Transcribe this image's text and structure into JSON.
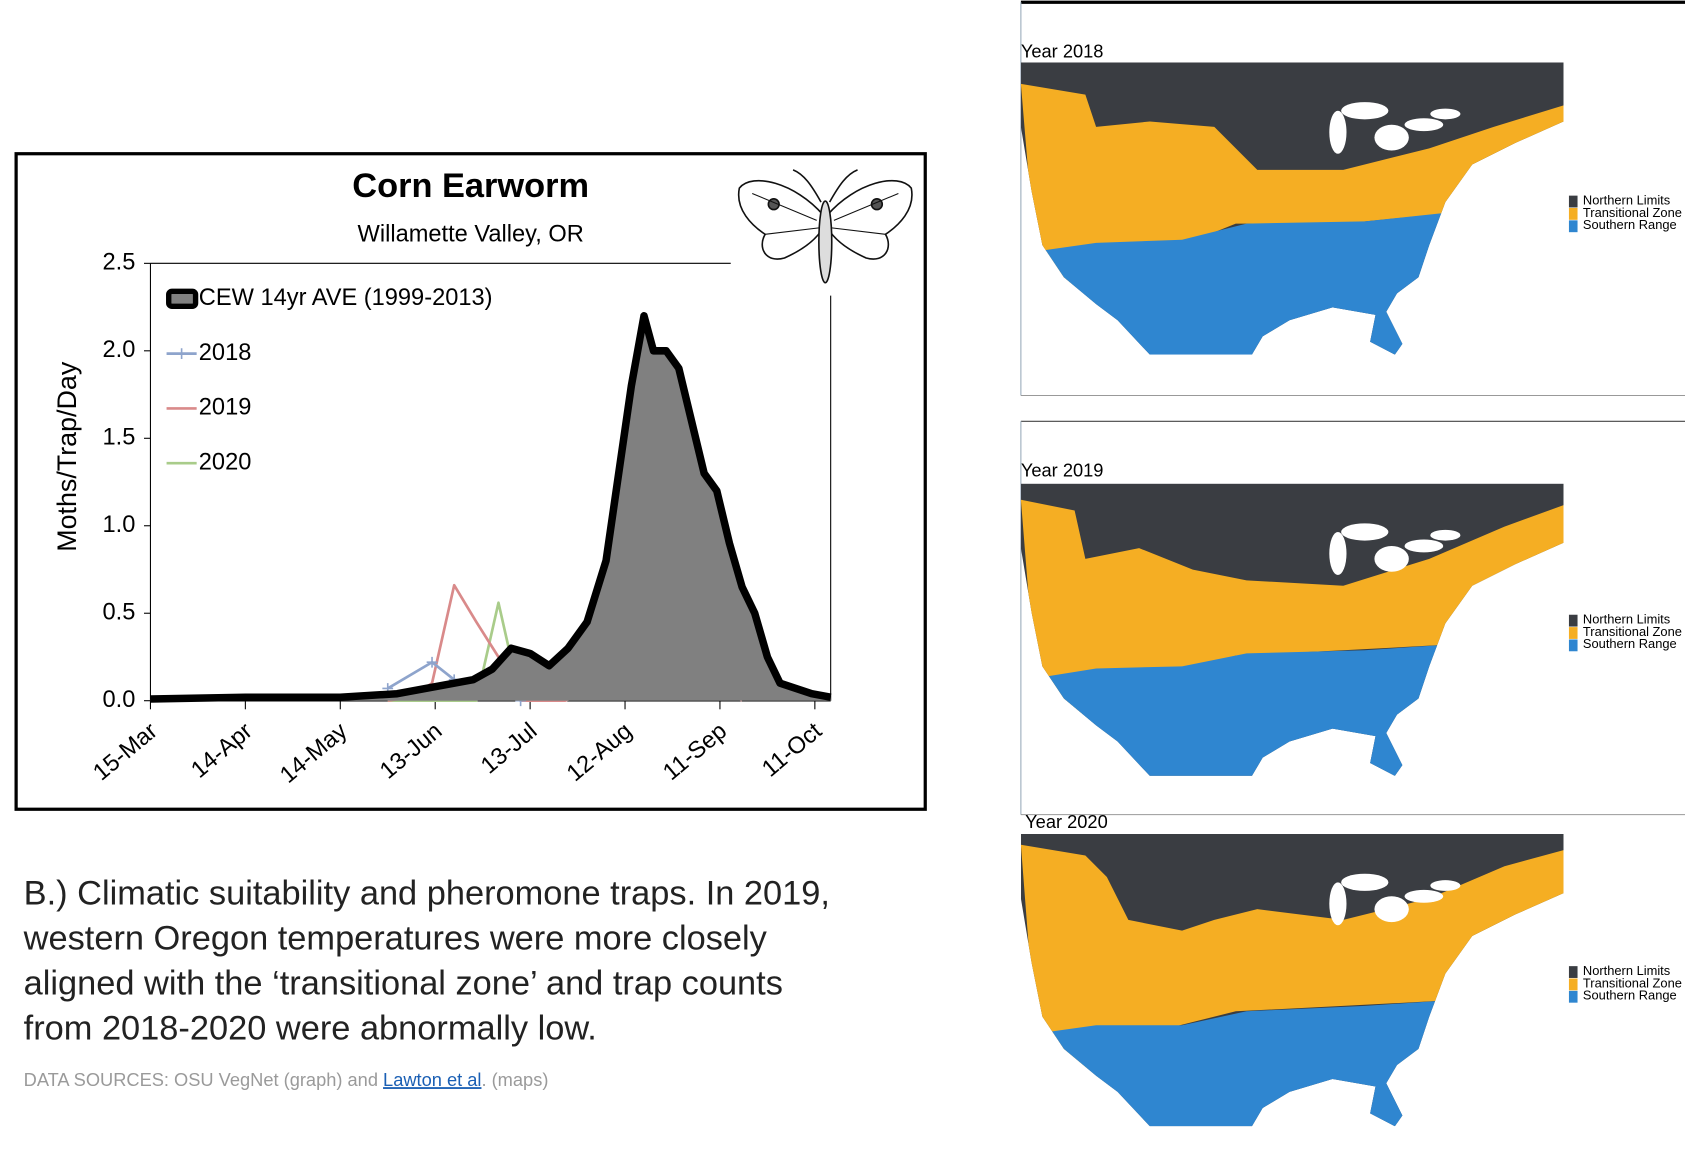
{
  "chart_data": {
    "type": "line",
    "title": "Corn Earworm",
    "subtitle": "Willamette Valley, OR",
    "y_label": "Moths/Trap/Day",
    "xlim": [
      "15-Mar",
      "16-Oct"
    ],
    "xticks": [
      "15-Mar",
      "14-Apr",
      "14-May",
      "13-Jun",
      "13-Jul",
      "12-Aug",
      "11-Sep",
      "11-Oct"
    ],
    "ylim": [
      0,
      2.5
    ],
    "yticks": [
      {
        "value": 0,
        "label": "0.0"
      },
      0.5,
      {
        "value": 1,
        "label": "1.0"
      },
      1.5,
      {
        "value": 2,
        "label": "2.0"
      },
      2.5
    ],
    "legend": "upper left",
    "series": [
      {
        "name": "CEW 14yr AVE (1999-2013)",
        "color": "#000000",
        "fill": "#808080",
        "area": true,
        "x": [
          "15-Mar",
          "14-Apr",
          "14-May",
          "1-Jun",
          "13-Jun",
          "25-Jun",
          "1-Jul",
          "7-Jul",
          "13-Jul",
          "19-Jul",
          "25-Jul",
          "31-Jul",
          "6-Aug",
          "10-Aug",
          "14-Aug",
          "18-Aug",
          "21-Aug",
          "25-Aug",
          "29-Aug",
          "2-Sep",
          "6-Sep",
          "10-Sep",
          "14-Sep",
          "18-Sep",
          "22-Sep",
          "26-Sep",
          "30-Sep",
          "5-Oct",
          "10-Oct",
          "16-Oct"
        ],
        "values": [
          0.01,
          0.02,
          0.02,
          0.04,
          0.08,
          0.12,
          0.18,
          0.3,
          0.27,
          0.2,
          0.3,
          0.45,
          0.8,
          1.3,
          1.8,
          2.2,
          2.0,
          2.0,
          1.9,
          1.6,
          1.3,
          1.2,
          0.9,
          0.65,
          0.5,
          0.25,
          0.1,
          0.07,
          0.04,
          0.02
        ]
      },
      {
        "name": "2018",
        "color": "#8ea4cc",
        "markers": true,
        "x": [
          "29-May",
          "12-Jun",
          "19-Jun",
          "26-Jun",
          "3-Jul",
          "10-Jul",
          "17-Jul",
          "24-Jul",
          "31-Jul",
          "7-Aug",
          "14-Aug",
          "21-Aug",
          "28-Aug",
          "4-Sep",
          "11-Sep",
          "18-Sep"
        ],
        "values": [
          0.07,
          0.22,
          0.12,
          0.1,
          0.08,
          0.0,
          0.07,
          0.06,
          0.07,
          0.25,
          0.28,
          0.6,
          0.35,
          0.12,
          0.42,
          0.42
        ]
      },
      {
        "name": "2019",
        "color": "#d98a8a",
        "x": [
          "29-May",
          "5-Jun",
          "12-Jun",
          "19-Jun",
          "26-Jun",
          "3-Jul",
          "10-Jul",
          "17-Jul",
          "24-Jul",
          "31-Jul",
          "7-Aug",
          "14-Aug",
          "21-Aug",
          "28-Aug",
          "4-Sep",
          "11-Sep",
          "18-Sep"
        ],
        "values": [
          0.0,
          0.02,
          0.1,
          0.66,
          0.45,
          0.25,
          0.0,
          0.0,
          0.0,
          0.05,
          0.18,
          0.28,
          0.05,
          0.12,
          0.13,
          0.1,
          0.0
        ]
      },
      {
        "name": "2020",
        "color": "#a9cc8a",
        "x": [
          "29-May",
          "5-Jun",
          "12-Jun",
          "19-Jun",
          "26-Jun",
          "3-Jul",
          "10-Jul",
          "17-Jul",
          "24-Jul",
          "31-Jul",
          "7-Aug",
          "14-Aug",
          "21-Aug",
          "28-Aug",
          "4-Sep"
        ],
        "values": [
          0.0,
          0.0,
          0.0,
          0.0,
          0.0,
          0.56,
          0.0,
          0.08,
          0.15,
          0.3,
          0.05,
          0.15,
          0.6,
          0.1,
          0.15
        ]
      }
    ]
  },
  "caption": [
    "B.) Climatic suitability and pheromone traps. In 2019,",
    "western Oregon temperatures were more closely",
    "aligned with the ‘transitional zone’ and trap counts",
    "from 2018-2020 were abnormally low."
  ],
  "sources": {
    "before": "DATA SOURCES: OSU VegNet (graph) and",
    "link": "Lawton et al",
    "after": ". (maps)"
  },
  "maps": [
    {
      "title": "Year 2018",
      "legend": [
        {
          "label": "Northern Limits",
          "color": "#3a3d42"
        },
        {
          "label": "Transitional Zone",
          "color": "#f5ae23"
        },
        {
          "label": "Southern Range",
          "color": "#2f86d0"
        }
      ]
    },
    {
      "title": "Year 2019",
      "legend": [
        {
          "label": "Northern Limits",
          "color": "#3a3d42"
        },
        {
          "label": "Transitional Zone",
          "color": "#f5ae23"
        },
        {
          "label": "Southern Range",
          "color": "#2f86d0"
        }
      ]
    },
    {
      "title": "Year 2020",
      "legend": [
        {
          "label": "Northern Limits",
          "color": "#3a3d42"
        },
        {
          "label": "Transitional Zone",
          "color": "#f5ae23"
        },
        {
          "label": "Southern Range",
          "color": "#2f86d0"
        }
      ]
    }
  ]
}
